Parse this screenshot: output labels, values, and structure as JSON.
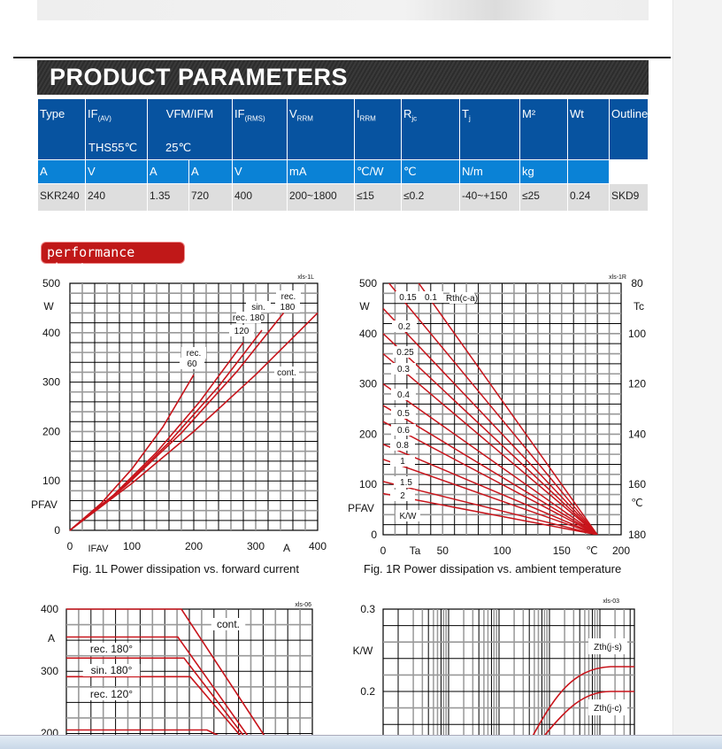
{
  "title": "PRODUCT PARAMETERS",
  "table": {
    "headers": [
      {
        "main": "Type"
      },
      {
        "main": "IF",
        "sub": "(AV)",
        "line2": "THS55℃"
      },
      {
        "main": "VFM/IFM",
        "line2": "25℃"
      },
      {
        "main": "IF",
        "sub": "(RMS)"
      },
      {
        "main": "V",
        "sub": "RRM"
      },
      {
        "main": "I",
        "sub": "RRM"
      },
      {
        "main": "R",
        "sub": "jc"
      },
      {
        "main": "T",
        "sub": "j"
      },
      {
        "main": "M²"
      },
      {
        "main": "Wt"
      },
      {
        "main": "Outline"
      }
    ],
    "units": [
      "",
      "A",
      "V",
      "A",
      "A",
      "V",
      "mA",
      "℃/W",
      "℃",
      "N/m",
      "kg",
      ""
    ],
    "rows": [
      [
        "SKR240",
        "240",
        "1.35",
        "720",
        "400",
        "200~1800",
        "≤15",
        "≤0.2",
        "-40~+150",
        "≤25",
        "0.24",
        "SKD9"
      ]
    ]
  },
  "badge": "performance chart",
  "chart_data": [
    {
      "type": "line",
      "id": "xls-1L",
      "title": "Fig. 1L Power dissipation vs. forward current",
      "xlabel": "IFAV",
      "xunit": "A",
      "ylabel": "PFAV",
      "yunit": "W",
      "xlim": [
        0,
        400
      ],
      "ylim": [
        0,
        500
      ],
      "xticks": [
        "0",
        "100",
        "200",
        "300",
        "400"
      ],
      "yticks": [
        "0",
        "100",
        "200",
        "300",
        "400",
        "500"
      ],
      "series": [
        {
          "name": "rec. 60",
          "x": [
            0,
            50,
            100,
            150,
            200
          ],
          "y": [
            0,
            54,
            124,
            209,
            315
          ]
        },
        {
          "name": "rec. 120",
          "x": [
            0,
            70,
            140,
            210,
            280
          ],
          "y": [
            0,
            71,
            158,
            261,
            380
          ]
        },
        {
          "name": "sin. 180",
          "x": [
            0,
            80,
            160,
            240,
            310
          ],
          "y": [
            0,
            80,
            178,
            291,
            405
          ]
        },
        {
          "name": "rec. 180",
          "x": [
            0,
            90,
            180,
            270,
            345
          ],
          "y": [
            0,
            90,
            197,
            322,
            440
          ]
        },
        {
          "name": "cont.",
          "x": [
            0,
            100,
            200,
            300,
            400
          ],
          "y": [
            0,
            95,
            200,
            315,
            440
          ]
        }
      ]
    },
    {
      "type": "line",
      "id": "xls-1R",
      "title": "Fig. 1R Power dissipation vs. ambient temperature",
      "xlabel": "Ta",
      "xunit": "℃",
      "ylabel": "PFAV",
      "yunit": "W",
      "y2label": "Tc",
      "y2unit": "℃",
      "xlim": [
        0,
        200
      ],
      "ylim": [
        0,
        500
      ],
      "xticks": [
        "0",
        "50",
        "100",
        "150",
        "200"
      ],
      "yticks": [
        "0",
        "100",
        "200",
        "300",
        "400",
        "500"
      ],
      "y2ticks": [
        "180",
        "160",
        "140",
        "120",
        "100",
        "80"
      ],
      "legend_title": "Rth(c-a)",
      "legend_unit": "K/W",
      "series_labels": [
        "0.1",
        "0.15",
        "0.2",
        "0.25",
        "0.3",
        "0.4",
        "0.5",
        "0.6",
        "0.8",
        "1",
        "1.5",
        "2"
      ],
      "converge_x": 180
    },
    {
      "type": "line",
      "id": "xls-06",
      "xlabel": "",
      "ylabel": "",
      "yunit": "A",
      "ylim": [
        200,
        400
      ],
      "yticks": [
        "400",
        "300",
        "200"
      ],
      "series": [
        {
          "name": "cont.",
          "y": 400
        },
        {
          "name": "rec. 180°",
          "y": 355
        },
        {
          "name": "sin. 180°",
          "y": 321
        },
        {
          "name": "rec. 120°",
          "y": 291
        },
        {
          "name": "",
          "y": 205
        }
      ]
    },
    {
      "type": "line",
      "id": "xls-03",
      "yunit": "K/W",
      "yticks": [
        "0.3",
        "0.2"
      ],
      "series": [
        {
          "name": "Zth(j-s)",
          "plateau": 0.23
        },
        {
          "name": "Zth(j-c)",
          "plateau": 0.2
        }
      ]
    }
  ],
  "colors": {
    "header": "#0753a0",
    "units": "#0a82d6",
    "curve": "#c8141b"
  }
}
